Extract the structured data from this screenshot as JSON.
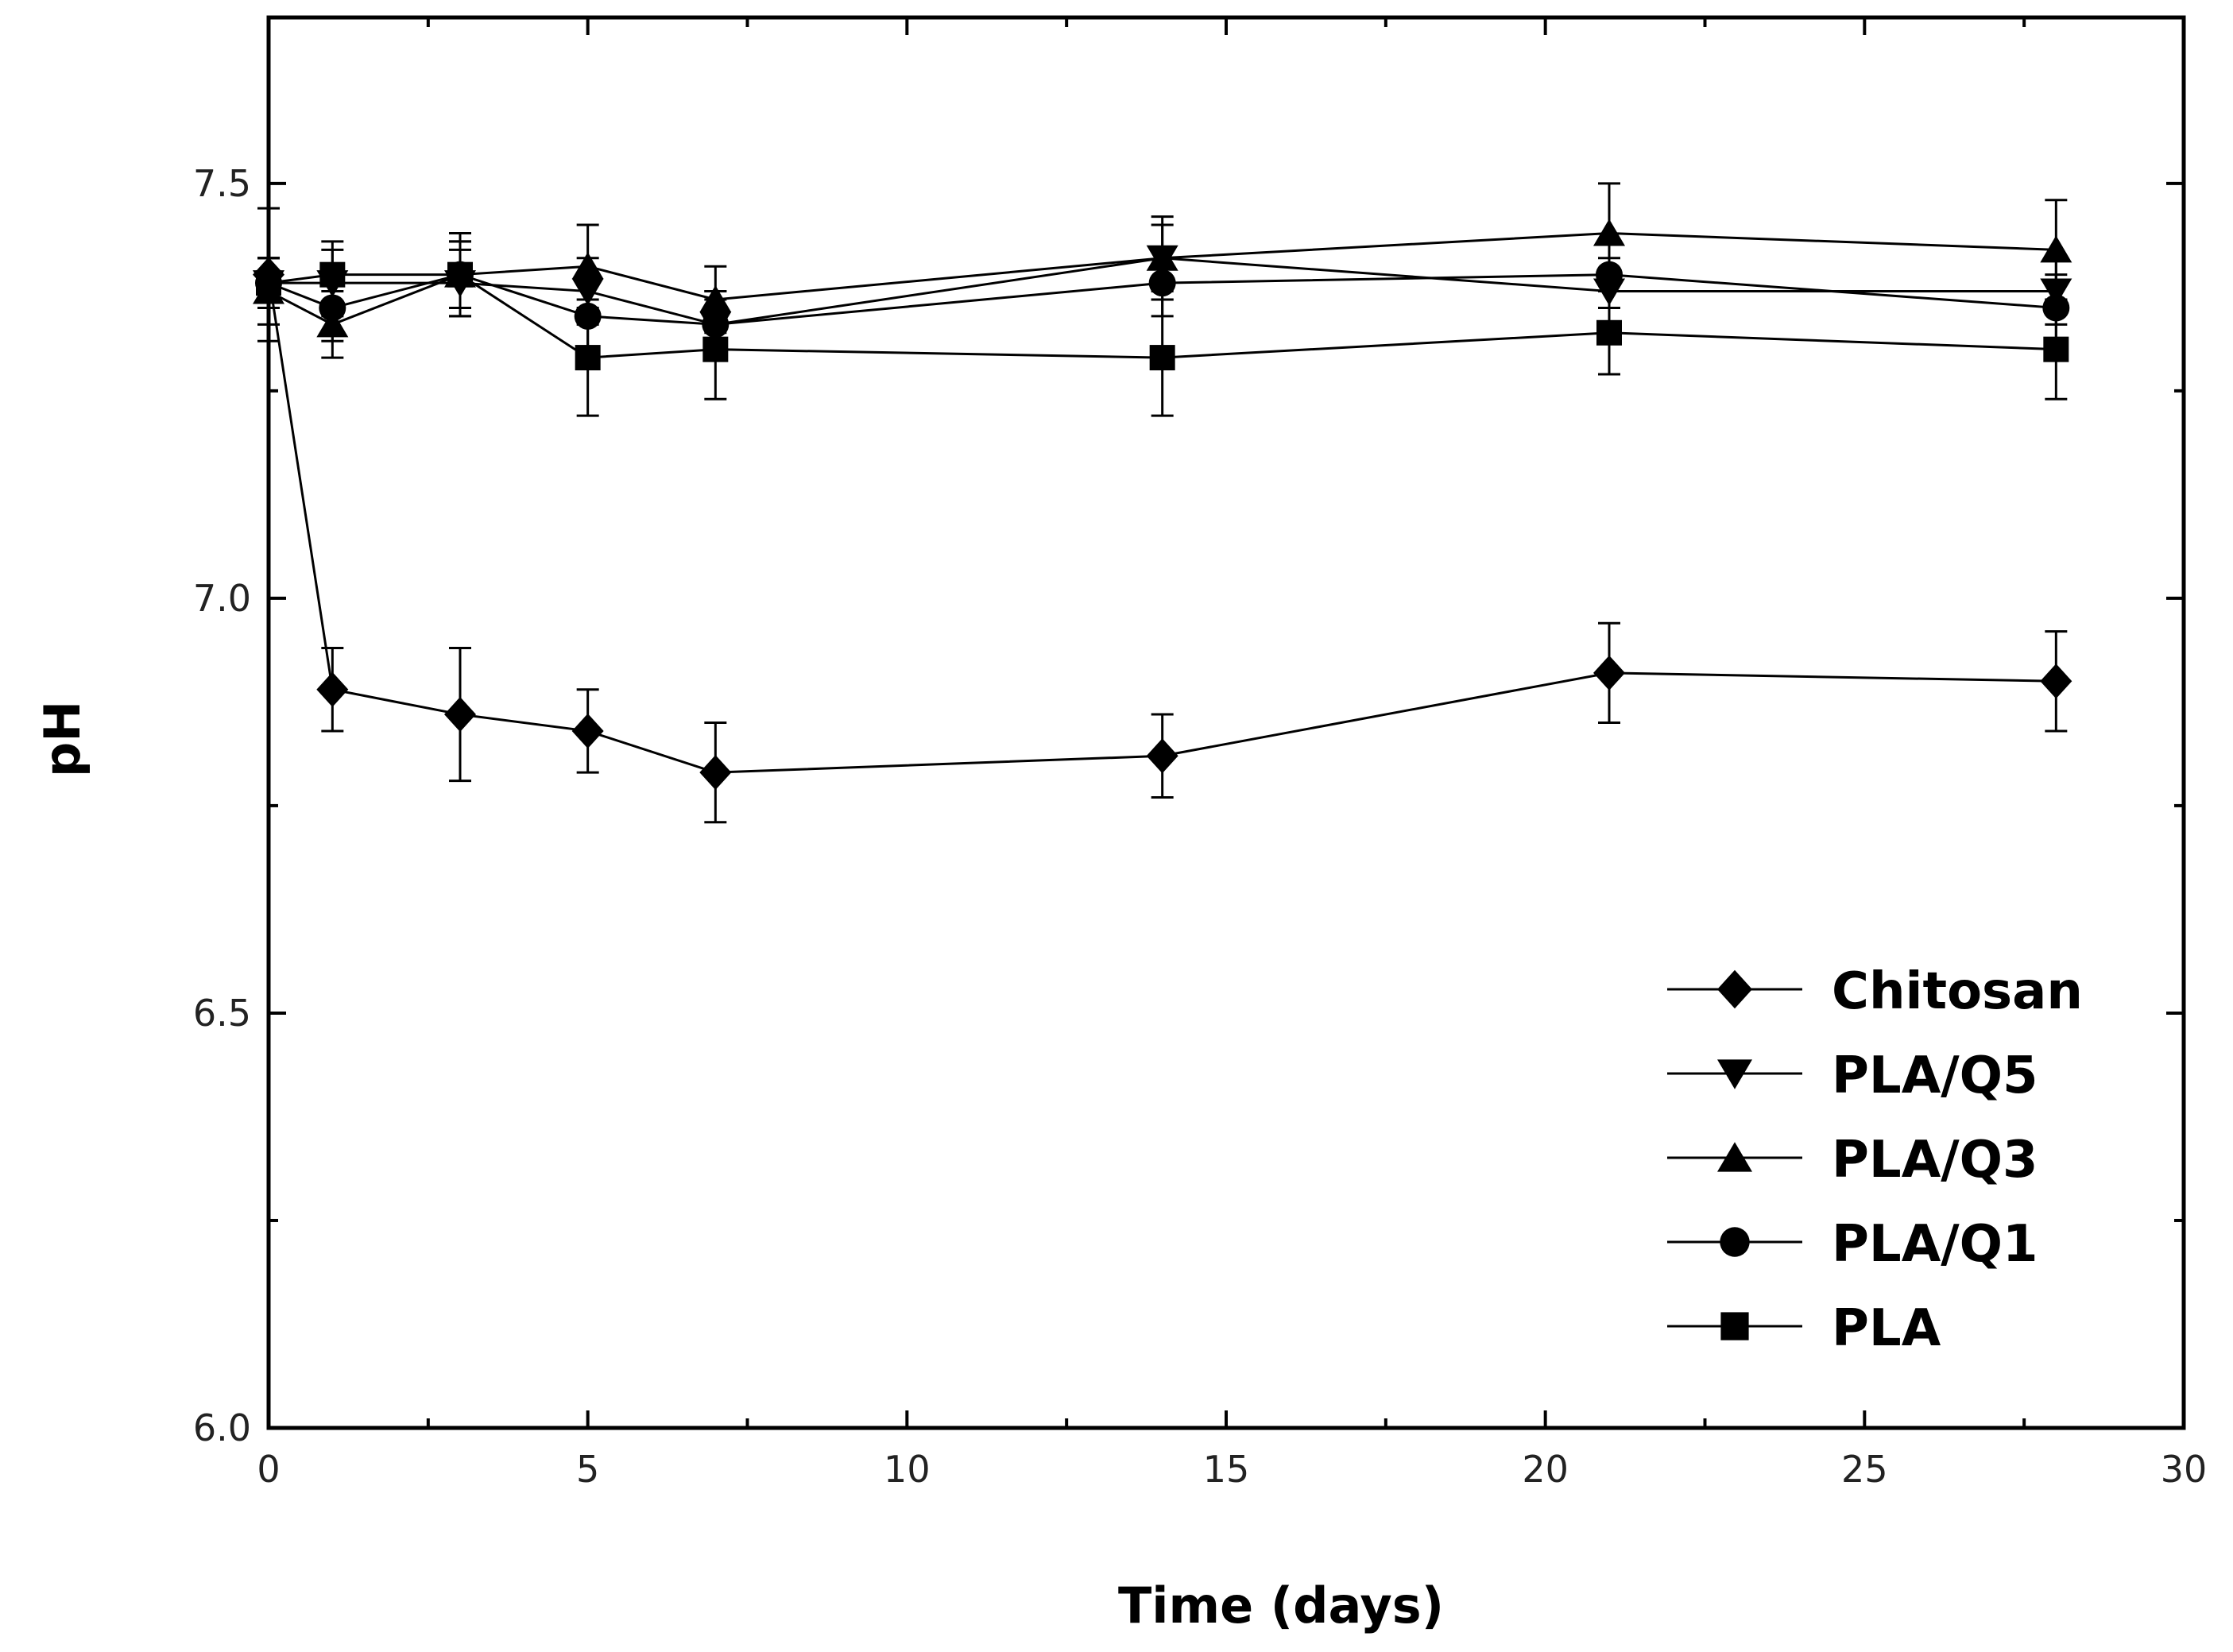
{
  "chart_data": {
    "type": "line",
    "title": "",
    "xlabel": "Time (days)",
    "ylabel": "pH",
    "xlim": [
      0,
      30
    ],
    "ylim": [
      6.0,
      7.7
    ],
    "xticks": [
      0,
      5,
      10,
      15,
      20,
      25,
      30
    ],
    "xtick_labels": [
      "0",
      "5",
      "10",
      "15",
      "20",
      "25",
      "30"
    ],
    "yticks": [
      6.0,
      6.5,
      7.0,
      7.5
    ],
    "ytick_labels": [
      "6.0",
      "6.5",
      "7.0",
      "7.5"
    ],
    "grid": false,
    "legend_position": "bottom-right",
    "x": [
      0,
      1,
      3,
      5,
      7,
      14,
      21,
      28
    ],
    "series": [
      {
        "name": "Chitosan",
        "marker": "diamond",
        "values": [
          7.39,
          6.89,
          6.86,
          6.84,
          6.79,
          6.81,
          6.91,
          6.9
        ],
        "errors": [
          0.08,
          0.05,
          0.08,
          0.05,
          0.06,
          0.05,
          0.06,
          0.06
        ]
      },
      {
        "name": "PLA/Q5",
        "marker": "triangle-down",
        "values": [
          7.38,
          7.38,
          7.38,
          7.37,
          7.33,
          7.41,
          7.37,
          7.37
        ],
        "errors": [
          0.03,
          0.04,
          0.04,
          0.04,
          0.04,
          0.04,
          0.04,
          0.04
        ]
      },
      {
        "name": "PLA/Q3",
        "marker": "triangle-up",
        "values": [
          7.37,
          7.33,
          7.39,
          7.4,
          7.36,
          7.41,
          7.44,
          7.42
        ],
        "errors": [
          0.04,
          0.04,
          0.05,
          0.05,
          0.04,
          0.05,
          0.06,
          0.06
        ]
      },
      {
        "name": "PLA/Q1",
        "marker": "circle",
        "values": [
          7.38,
          7.35,
          7.39,
          7.34,
          7.33,
          7.38,
          7.39,
          7.35
        ],
        "errors": [
          0.03,
          0.04,
          0.04,
          0.04,
          0.04,
          0.04,
          0.04,
          0.04
        ]
      },
      {
        "name": "PLA",
        "marker": "square",
        "values": [
          7.38,
          7.39,
          7.39,
          7.29,
          7.3,
          7.29,
          7.32,
          7.3
        ],
        "errors": [
          0.03,
          0.04,
          0.04,
          0.07,
          0.06,
          0.07,
          0.05,
          0.06
        ]
      }
    ]
  }
}
